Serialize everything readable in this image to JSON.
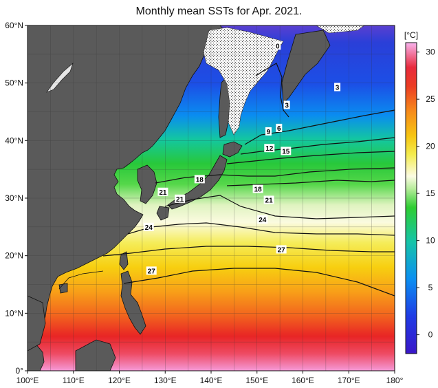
{
  "title": "Monthly mean SSTs for Apr. 2021.",
  "colorbar": {
    "unit": "[°C]",
    "ticks": [
      "30",
      "25",
      "20",
      "15",
      "10",
      "5",
      "0"
    ],
    "tick_values": [
      30,
      25,
      20,
      15,
      10,
      5,
      0
    ],
    "range": [
      -2,
      31
    ]
  },
  "axes": {
    "lat_labels": [
      "60°N",
      "50°N",
      "40°N",
      "30°N",
      "20°N",
      "10°N",
      "0°"
    ],
    "lat_values": [
      60,
      50,
      40,
      30,
      20,
      10,
      0
    ],
    "lon_labels": [
      "100°E",
      "110°E",
      "120°E",
      "130°E",
      "140°E",
      "150°E",
      "160°E",
      "170°E",
      "180°"
    ],
    "lon_values": [
      100,
      110,
      120,
      130,
      140,
      150,
      160,
      170,
      180
    ]
  },
  "contour_labels": [
    {
      "text": "0",
      "lon": 154.5,
      "lat": 56.5
    },
    {
      "text": "3",
      "lon": 167.5,
      "lat": 49.3
    },
    {
      "text": "3",
      "lon": 156.5,
      "lat": 46.2
    },
    {
      "text": "6",
      "lon": 154.8,
      "lat": 42.2
    },
    {
      "text": "9",
      "lon": 152.5,
      "lat": 41.6
    },
    {
      "text": "12",
      "lon": 152.7,
      "lat": 38.7
    },
    {
      "text": "15",
      "lon": 156.3,
      "lat": 38.2
    },
    {
      "text": "18",
      "lon": 137.5,
      "lat": 33.3
    },
    {
      "text": "18",
      "lon": 150.2,
      "lat": 31.6
    },
    {
      "text": "21",
      "lon": 129.5,
      "lat": 31.1
    },
    {
      "text": "21",
      "lon": 133.2,
      "lat": 29.9
    },
    {
      "text": "21",
      "lon": 152.6,
      "lat": 29.7
    },
    {
      "text": "24",
      "lon": 151.2,
      "lat": 26.3
    },
    {
      "text": "24",
      "lon": 126.4,
      "lat": 25.0
    },
    {
      "text": "27",
      "lon": 155.3,
      "lat": 21.1
    },
    {
      "text": "27",
      "lon": 127.0,
      "lat": 17.4
    }
  ],
  "colors": {
    "land": "#5a5a5a",
    "ice": "#ececec",
    "coast": "#111111"
  }
}
